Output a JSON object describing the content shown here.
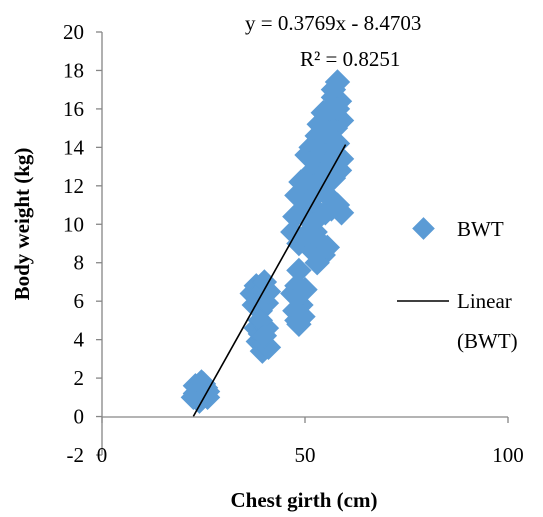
{
  "chart_data": {
    "type": "scatter",
    "xlabel": "Chest girth (cm)",
    "ylabel": "Body weight (kg)",
    "xlim": [
      0,
      100
    ],
    "ylim": [
      -2,
      20
    ],
    "x_ticks": [
      "0",
      "50",
      "100"
    ],
    "y_ticks": [
      "-2",
      "0",
      "2",
      "4",
      "6",
      "8",
      "10",
      "12",
      "14",
      "16",
      "18",
      "20"
    ],
    "grid": false,
    "legend_position": "right",
    "series": [
      {
        "name": "BWT",
        "marker": "diamond",
        "color": "#5b9bd5",
        "points": [
          [
            22.5,
            1.0
          ],
          [
            23,
            1.6
          ],
          [
            23.5,
            0.9
          ],
          [
            24,
            1.4
          ],
          [
            24.5,
            1.8
          ],
          [
            25,
            1.1
          ],
          [
            25.5,
            1.5
          ],
          [
            26,
            1.0
          ],
          [
            24,
            0.8
          ],
          [
            23,
            1.2
          ],
          [
            25,
            1.7
          ],
          [
            26,
            1.3
          ],
          [
            37,
            6.4
          ],
          [
            37.5,
            5.8
          ],
          [
            38,
            6.8
          ],
          [
            38.5,
            6.1
          ],
          [
            39,
            5.5
          ],
          [
            39.5,
            6.6
          ],
          [
            40,
            7.0
          ],
          [
            40.5,
            5.9
          ],
          [
            41,
            6.5
          ],
          [
            38,
            4.6
          ],
          [
            38.5,
            3.9
          ],
          [
            39,
            4.3
          ],
          [
            39.5,
            3.4
          ],
          [
            40,
            3.8
          ],
          [
            40.5,
            4.6
          ],
          [
            41,
            3.6
          ],
          [
            39,
            5.0
          ],
          [
            40,
            4.2
          ],
          [
            47,
            6.4
          ],
          [
            47.5,
            5.5
          ],
          [
            48,
            6.8
          ],
          [
            48,
            5.0
          ],
          [
            48.5,
            4.8
          ],
          [
            49,
            5.8
          ],
          [
            49.5,
            5.2
          ],
          [
            50,
            6.6
          ],
          [
            48.5,
            7.6
          ],
          [
            47,
            9.6
          ],
          [
            47.5,
            10.4
          ],
          [
            48,
            11.5
          ],
          [
            48.5,
            9.0
          ],
          [
            49,
            12.2
          ],
          [
            49.5,
            10.8
          ],
          [
            50,
            11.8
          ],
          [
            50,
            9.4
          ],
          [
            50.5,
            13.6
          ],
          [
            51,
            12.4
          ],
          [
            51,
            10.2
          ],
          [
            51.5,
            11.0
          ],
          [
            51.5,
            14.0
          ],
          [
            52,
            8.6
          ],
          [
            52,
            12.8
          ],
          [
            52.5,
            9.6
          ],
          [
            52.5,
            13.2
          ],
          [
            53,
            8.0
          ],
          [
            53,
            11.6
          ],
          [
            53,
            14.6
          ],
          [
            53.5,
            10.4
          ],
          [
            53.5,
            15.2
          ],
          [
            54,
            9.0
          ],
          [
            54,
            12.0
          ],
          [
            54,
            13.8
          ],
          [
            54.5,
            8.4
          ],
          [
            54.5,
            15.8
          ],
          [
            55,
            10.6
          ],
          [
            55,
            12.6
          ],
          [
            55,
            14.4
          ],
          [
            55.5,
            8.8
          ],
          [
            55.5,
            15.6
          ],
          [
            56,
            11.4
          ],
          [
            56,
            13.0
          ],
          [
            56,
            16.0
          ],
          [
            56.5,
            10.8
          ],
          [
            56.5,
            14.8
          ],
          [
            57,
            12.4
          ],
          [
            57,
            16.6
          ],
          [
            57.5,
            13.6
          ],
          [
            57.5,
            15.0
          ],
          [
            58,
            17.4
          ],
          [
            58,
            11.0
          ],
          [
            58,
            14.2
          ],
          [
            58.5,
            16.4
          ],
          [
            58.5,
            12.8
          ],
          [
            59,
            15.4
          ],
          [
            59,
            13.4
          ],
          [
            59,
            10.6
          ],
          [
            57,
            17.0
          ],
          [
            58,
            16.0
          ]
        ]
      }
    ],
    "trendline": {
      "name": "Linear (BWT)",
      "type": "linear",
      "slope": 0.3769,
      "intercept": -8.4703,
      "x_range": [
        22.5,
        60
      ],
      "color": "#000000"
    },
    "annotations": [
      "y = 0.3769x - 8.4703",
      "R² = 0.8251"
    ]
  },
  "legend": {
    "series_label": "BWT",
    "trend_label_line1": "Linear",
    "trend_label_line2": "(BWT)"
  },
  "equation": {
    "line1": "y = 0.3769x - 8.4703",
    "line2": "R² = 0.8251"
  }
}
